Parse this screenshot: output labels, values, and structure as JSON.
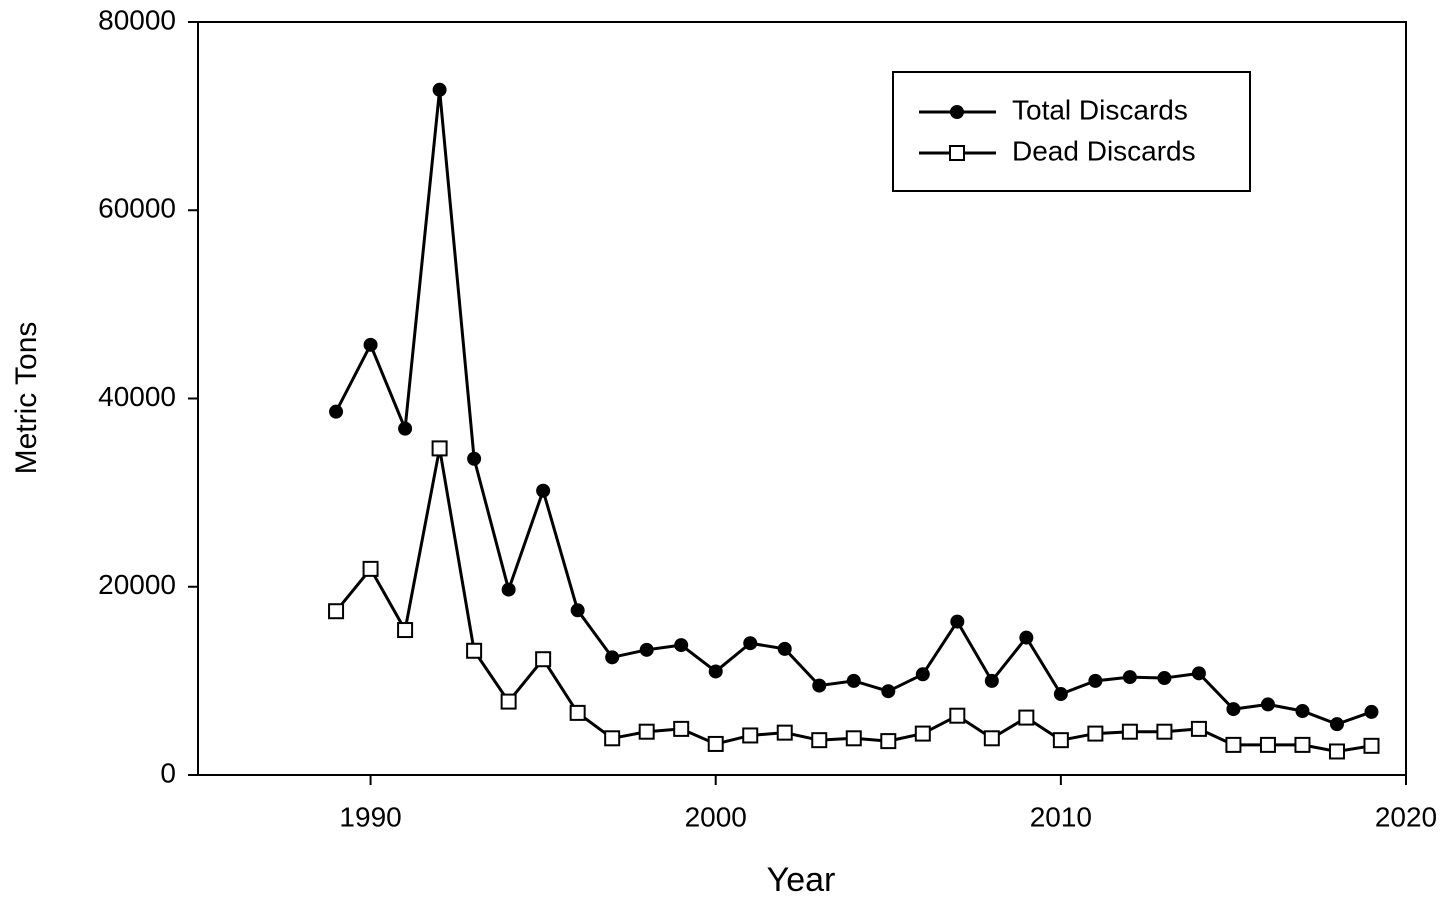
{
  "chart_data": {
    "type": "line",
    "x": [
      1989,
      1990,
      1991,
      1992,
      1993,
      1994,
      1995,
      1996,
      1997,
      1998,
      1999,
      2000,
      2001,
      2002,
      2003,
      2004,
      2005,
      2006,
      2007,
      2008,
      2009,
      2010,
      2011,
      2012,
      2013,
      2014,
      2015,
      2016,
      2017,
      2018,
      2019
    ],
    "series": [
      {
        "name": "Total Discards",
        "color": "#000000",
        "marker": "filled-circle",
        "values": [
          38600,
          45700,
          36800,
          72800,
          33600,
          19700,
          30200,
          17500,
          12500,
          13300,
          13800,
          11000,
          14000,
          13400,
          9500,
          10000,
          8900,
          10700,
          16300,
          10000,
          14600,
          8600,
          10000,
          10400,
          10300,
          10800,
          7000,
          7500,
          6800,
          5400,
          6700
        ]
      },
      {
        "name": "Dead Discards",
        "color": "#000000",
        "marker": "open-square",
        "values": [
          17400,
          21900,
          15400,
          34700,
          13200,
          7800,
          12300,
          6600,
          3900,
          4600,
          4900,
          3300,
          4200,
          4500,
          3700,
          3900,
          3600,
          4400,
          6300,
          3900,
          6100,
          3700,
          4400,
          4600,
          4600,
          4900,
          3200,
          3200,
          3200,
          2500,
          3100
        ]
      }
    ],
    "x_label": "Year",
    "y_label": "Metric Tons",
    "xlim": [
      1985,
      2020
    ],
    "xticks": [
      1990,
      2000,
      2010,
      2020
    ],
    "ylim": [
      0,
      80000
    ],
    "yticks": [
      0,
      20000,
      40000,
      60000,
      80000
    ],
    "grid": false,
    "legend_position": "upper-right"
  }
}
